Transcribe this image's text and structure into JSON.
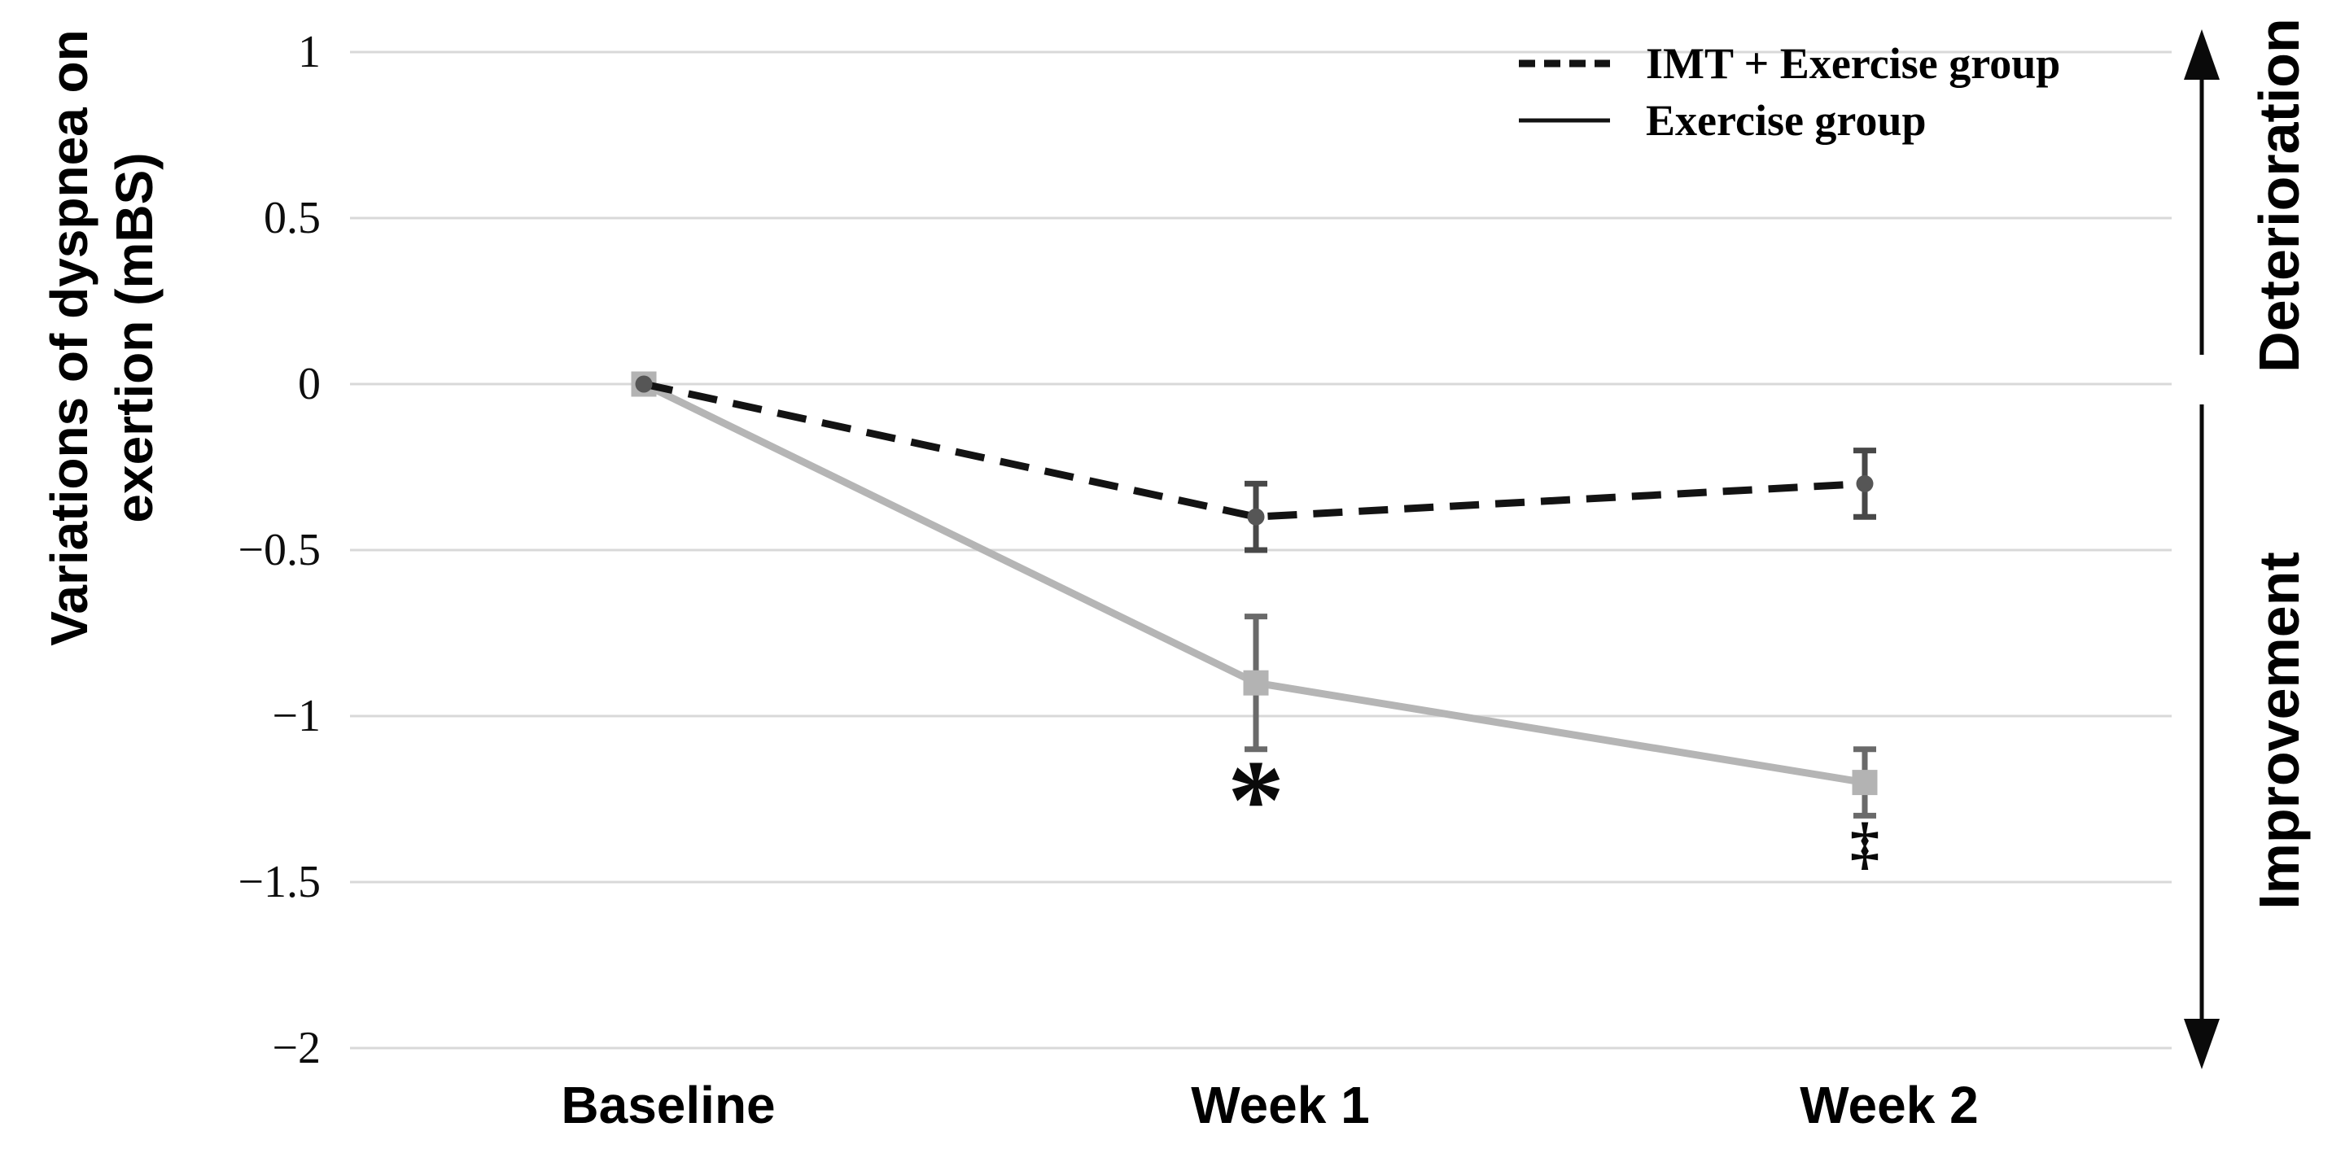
{
  "chart_data": {
    "type": "line",
    "categories": [
      "Baseline",
      "Week 1",
      "Week 2"
    ],
    "series": [
      {
        "name": "IMT + Exercise group",
        "style": "dashed",
        "marker": "circle",
        "values": [
          0,
          -0.4,
          -0.3
        ],
        "errors": [
          0,
          0.1,
          0.1
        ]
      },
      {
        "name": "Exercise group",
        "style": "solid",
        "marker": "square",
        "values": [
          0,
          -0.9,
          -1.2
        ],
        "errors": [
          0,
          0.2,
          0.1
        ]
      }
    ],
    "ylabel_line1": "Variations of dyspnea on",
    "ylabel_line2": "exertion (mBS)",
    "ylim": [
      -2,
      1
    ],
    "yticks": [
      1,
      0.5,
      0,
      -0.5,
      -1,
      -1.5,
      -2
    ],
    "ytick_labels": [
      "1",
      "0.5",
      "0",
      "−0.5",
      "−1",
      "−1.5",
      "−2"
    ],
    "grid": true,
    "legend_position": "top-right",
    "annotations": [
      {
        "text": "*",
        "category": "Week 1",
        "series": "Exercise group"
      },
      {
        "text": "‡",
        "category": "Week 2",
        "series": "Exercise group"
      }
    ],
    "right_labels": {
      "top": "Deterioration",
      "bottom": "Improvement"
    }
  },
  "colors": {
    "background": "#ffffff",
    "grid": "#d8d8d8",
    "text": "#000000",
    "series1_line": "#131313",
    "series1_marker": "#565656",
    "series1_error": "#484848",
    "series2_line": "#b5b5b5",
    "series2_marker": "#b3b3b3",
    "series2_error": "#6a6a6a",
    "annotation": "#0a0a0a",
    "arrow": "#0a0a0a"
  }
}
